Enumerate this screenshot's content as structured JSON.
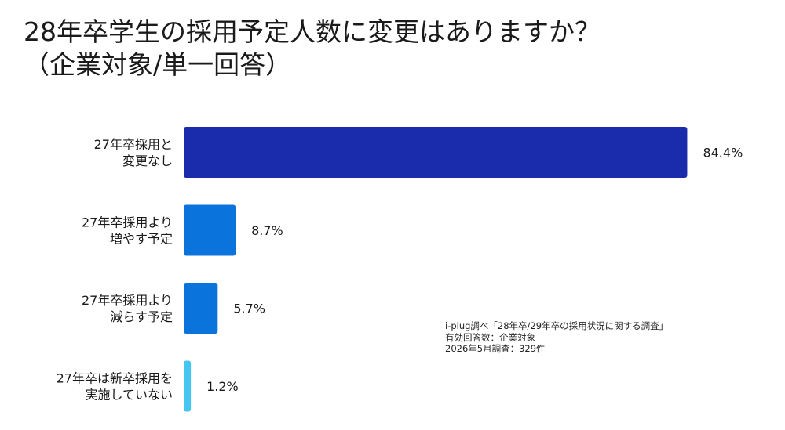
{
  "title": {
    "line1": "28年卒学生の採用予定人数に変更はありますか？",
    "line2": "（企業対象/単一回答）"
  },
  "note": {
    "line1": "i-plug調べ「28年卒/29年卒の採用状況に関する調査」",
    "line2": "有効回答数：企業対象",
    "line3": "2026年5月調査：329件"
  },
  "chart_data": {
    "type": "bar",
    "orientation": "horizontal",
    "title": "28年卒学生の採用予定人数に変更はありますか？（企業対象/単一回答）",
    "categories": [
      [
        "27年卒採用と",
        "変更なし"
      ],
      [
        "27年卒採用より",
        "増やす予定"
      ],
      [
        "27年卒採用より",
        "減らす予定"
      ],
      [
        "27年卒は新卒採用を",
        "実施していない"
      ]
    ],
    "values": [
      84.4,
      8.7,
      5.7,
      1.2
    ],
    "value_labels": [
      "84.4%",
      "8.7%",
      "5.7%",
      "1.2%"
    ],
    "colors": [
      "#1a2bab",
      "#0b74dc",
      "#0b74dc",
      "#46c6ee"
    ],
    "unit": "%",
    "xlim": [
      0,
      100
    ],
    "grid": false,
    "legend": "none"
  }
}
